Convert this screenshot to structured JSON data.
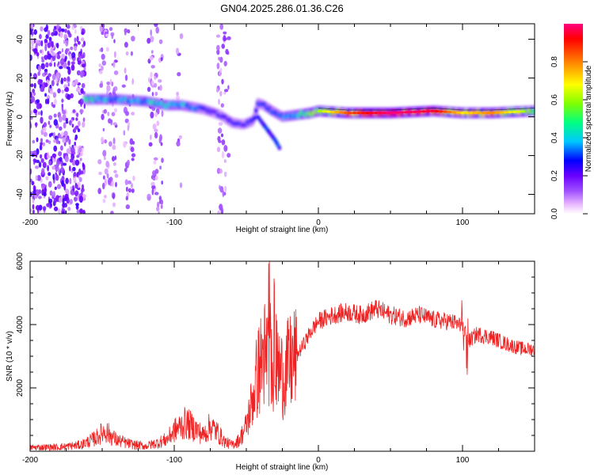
{
  "title": "GN04.2025.286.01.36.C26",
  "chart_data": [
    {
      "id": "spectrogram",
      "type": "heatmap",
      "xlabel": "Height of straight line (km)",
      "ylabel": "Frequency (Hz)",
      "xlim": [
        -200,
        150
      ],
      "ylim": [
        -50,
        48
      ],
      "xticks": [
        -200,
        -100,
        0,
        100
      ],
      "yticks": [
        -40,
        -20,
        0,
        20,
        40
      ],
      "colorbar": {
        "label": "Normalized spectral amplitude",
        "range": [
          0,
          1
        ],
        "ticks": [
          "0.0",
          "0.2",
          "0.4",
          "0.6",
          "0.8"
        ],
        "colors": [
          "#ffffff",
          "#e9b8ff",
          "#a050ff",
          "#6a00ff",
          "#0000ff",
          "#00c8ff",
          "#00ff80",
          "#80ff00",
          "#ffff00",
          "#ff8000",
          "#ff0000",
          "#ff0080"
        ]
      },
      "ridge": {
        "x": [
          -160,
          -140,
          -120,
          -105,
          -95,
          -80,
          -68,
          -60,
          -52,
          -45,
          -42,
          -38,
          -32,
          -25,
          -15,
          -5,
          0,
          20,
          50,
          80,
          100,
          120,
          150
        ],
        "freq": [
          9,
          9,
          8,
          6,
          6,
          4,
          1,
          -3,
          -4,
          -2,
          7,
          6,
          3,
          0,
          1,
          2,
          3,
          2,
          2,
          3,
          2,
          2,
          3
        ],
        "amplitude": [
          0.45,
          0.4,
          0.4,
          0.45,
          0.4,
          0.3,
          0.25,
          0.3,
          0.25,
          0.3,
          0.3,
          0.3,
          0.35,
          0.35,
          0.45,
          0.6,
          0.6,
          0.85,
          1.0,
          0.95,
          0.7,
          0.8,
          0.55
        ]
      },
      "branch": {
        "x": [
          -42,
          -38,
          -34,
          -30,
          -27
        ],
        "freq": [
          0,
          -4,
          -8,
          -12,
          -16
        ]
      }
    },
    {
      "id": "snr",
      "type": "line",
      "xlabel": "Height of straight line (km)",
      "ylabel": "SNR (10 * v/v)",
      "xlim": [
        -200,
        150
      ],
      "ylim": [
        0,
        6000
      ],
      "xticks": [
        -200,
        -100,
        0,
        100
      ],
      "yticks": [
        2000,
        4000,
        6000
      ],
      "series": [
        {
          "name": "SNR",
          "color": "#ee2222",
          "x": [
            -200,
            -180,
            -165,
            -155,
            -148,
            -140,
            -130,
            -120,
            -112,
            -105,
            -100,
            -92,
            -85,
            -80,
            -75,
            -70,
            -65,
            -60,
            -55,
            -50,
            -45,
            -42,
            -38,
            -34,
            -30,
            -25,
            -20,
            -15,
            -10,
            -5,
            0,
            10,
            20,
            30,
            40,
            50,
            60,
            70,
            80,
            90,
            95,
            100,
            105,
            110,
            120,
            130,
            140,
            150
          ],
          "y": [
            120,
            130,
            200,
            400,
            650,
            350,
            220,
            160,
            260,
            380,
            650,
            900,
            700,
            500,
            800,
            600,
            300,
            200,
            350,
            800,
            1800,
            2500,
            3000,
            3200,
            2800,
            2400,
            2700,
            3000,
            3400,
            3800,
            4100,
            4300,
            4400,
            4300,
            4500,
            4300,
            4200,
            4300,
            4150,
            4100,
            4050,
            3900,
            3500,
            3700,
            3600,
            3400,
            3250,
            3200
          ]
        }
      ]
    }
  ]
}
